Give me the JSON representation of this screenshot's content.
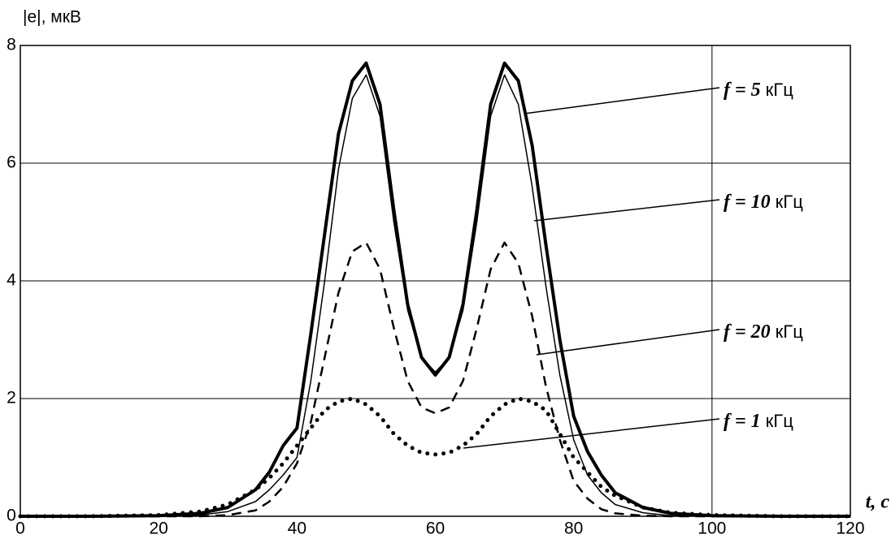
{
  "chart_data": {
    "type": "line",
    "y_label": "|e|, мкВ",
    "x_label": "t, с",
    "x": [
      0,
      10,
      20,
      26,
      30,
      34,
      36,
      38,
      40,
      42,
      44,
      46,
      48,
      50,
      52,
      54,
      56,
      58,
      60,
      62,
      64,
      66,
      68,
      70,
      72,
      74,
      76,
      78,
      80,
      82,
      84,
      86,
      90,
      94,
      100,
      110,
      120
    ],
    "series": [
      {
        "name": "f = 5 кГц",
        "color": "#000000",
        "line_width": 4,
        "line_style": "solid",
        "values": [
          0,
          0,
          0.01,
          0.05,
          0.15,
          0.45,
          0.75,
          1.2,
          1.5,
          3.1,
          4.8,
          6.5,
          7.4,
          7.7,
          7.0,
          5.2,
          3.6,
          2.7,
          2.4,
          2.7,
          3.6,
          5.2,
          7.0,
          7.7,
          7.4,
          6.3,
          4.6,
          3.0,
          1.7,
          1.1,
          0.7,
          0.4,
          0.15,
          0.05,
          0.01,
          0,
          0
        ]
      },
      {
        "name": "f = 10 кГц",
        "color": "#000000",
        "line_width": 1.5,
        "line_style": "solid",
        "values": [
          0,
          0,
          0,
          0.02,
          0.08,
          0.25,
          0.45,
          0.7,
          1.0,
          2.3,
          4.0,
          5.9,
          7.1,
          7.5,
          6.8,
          5.0,
          3.5,
          2.7,
          2.45,
          2.7,
          3.5,
          5.0,
          6.8,
          7.5,
          7.0,
          5.6,
          3.9,
          2.4,
          1.3,
          0.7,
          0.4,
          0.2,
          0.06,
          0.01,
          0,
          0,
          0
        ]
      },
      {
        "name": "f = 20 кГц",
        "color": "#000000",
        "line_width": 2.5,
        "line_style": "dashed",
        "values": [
          0,
          0,
          0,
          0,
          0.02,
          0.1,
          0.25,
          0.5,
          0.9,
          1.6,
          2.7,
          3.8,
          4.5,
          4.65,
          4.2,
          3.2,
          2.3,
          1.85,
          1.75,
          1.85,
          2.3,
          3.2,
          4.2,
          4.65,
          4.3,
          3.4,
          2.2,
          1.3,
          0.6,
          0.3,
          0.12,
          0.05,
          0.01,
          0,
          0,
          0,
          0
        ]
      },
      {
        "name": "f = 1 кГц",
        "color": "#000000",
        "line_width": 5,
        "line_style": "dotted",
        "values": [
          0,
          0,
          0.02,
          0.08,
          0.2,
          0.45,
          0.65,
          0.9,
          1.2,
          1.5,
          1.8,
          1.95,
          2.0,
          1.9,
          1.7,
          1.4,
          1.2,
          1.08,
          1.05,
          1.08,
          1.2,
          1.4,
          1.7,
          1.9,
          2.0,
          1.95,
          1.8,
          1.4,
          1.0,
          0.75,
          0.5,
          0.35,
          0.15,
          0.06,
          0.02,
          0,
          0
        ]
      }
    ],
    "xlim": [
      0,
      120
    ],
    "ylim": [
      0,
      8
    ],
    "xticks": [
      0,
      20,
      40,
      60,
      80,
      100,
      120
    ],
    "yticks": [
      0,
      2,
      4,
      6,
      8
    ],
    "grid": true,
    "x_grid_lines": [
      100
    ]
  }
}
